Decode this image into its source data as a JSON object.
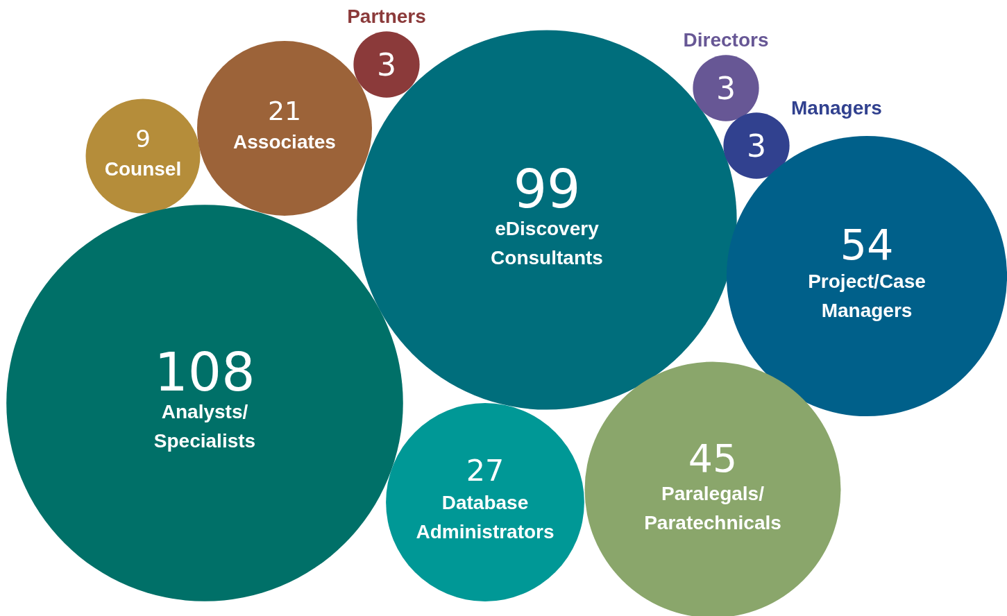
{
  "chart_data": {
    "type": "other",
    "data_labels": true,
    "categories": [
      "Counsel",
      "Associates",
      "Partners",
      "eDiscovery Consultants",
      "Directors",
      "Managers",
      "Project/Case Managers",
      "Analysts/ Specialists",
      "Database Administrators",
      "Paralegals/ Paratechnicals"
    ],
    "values": [
      9,
      21,
      3,
      99,
      3,
      3,
      54,
      108,
      27,
      45
    ],
    "colors": [
      "#b58d3a",
      "#9c6339",
      "#8b3a3a",
      "#006e7c",
      "#675795",
      "#31418f",
      "#00608a",
      "#007068",
      "#009896",
      "#8aa66b"
    ]
  }
}
